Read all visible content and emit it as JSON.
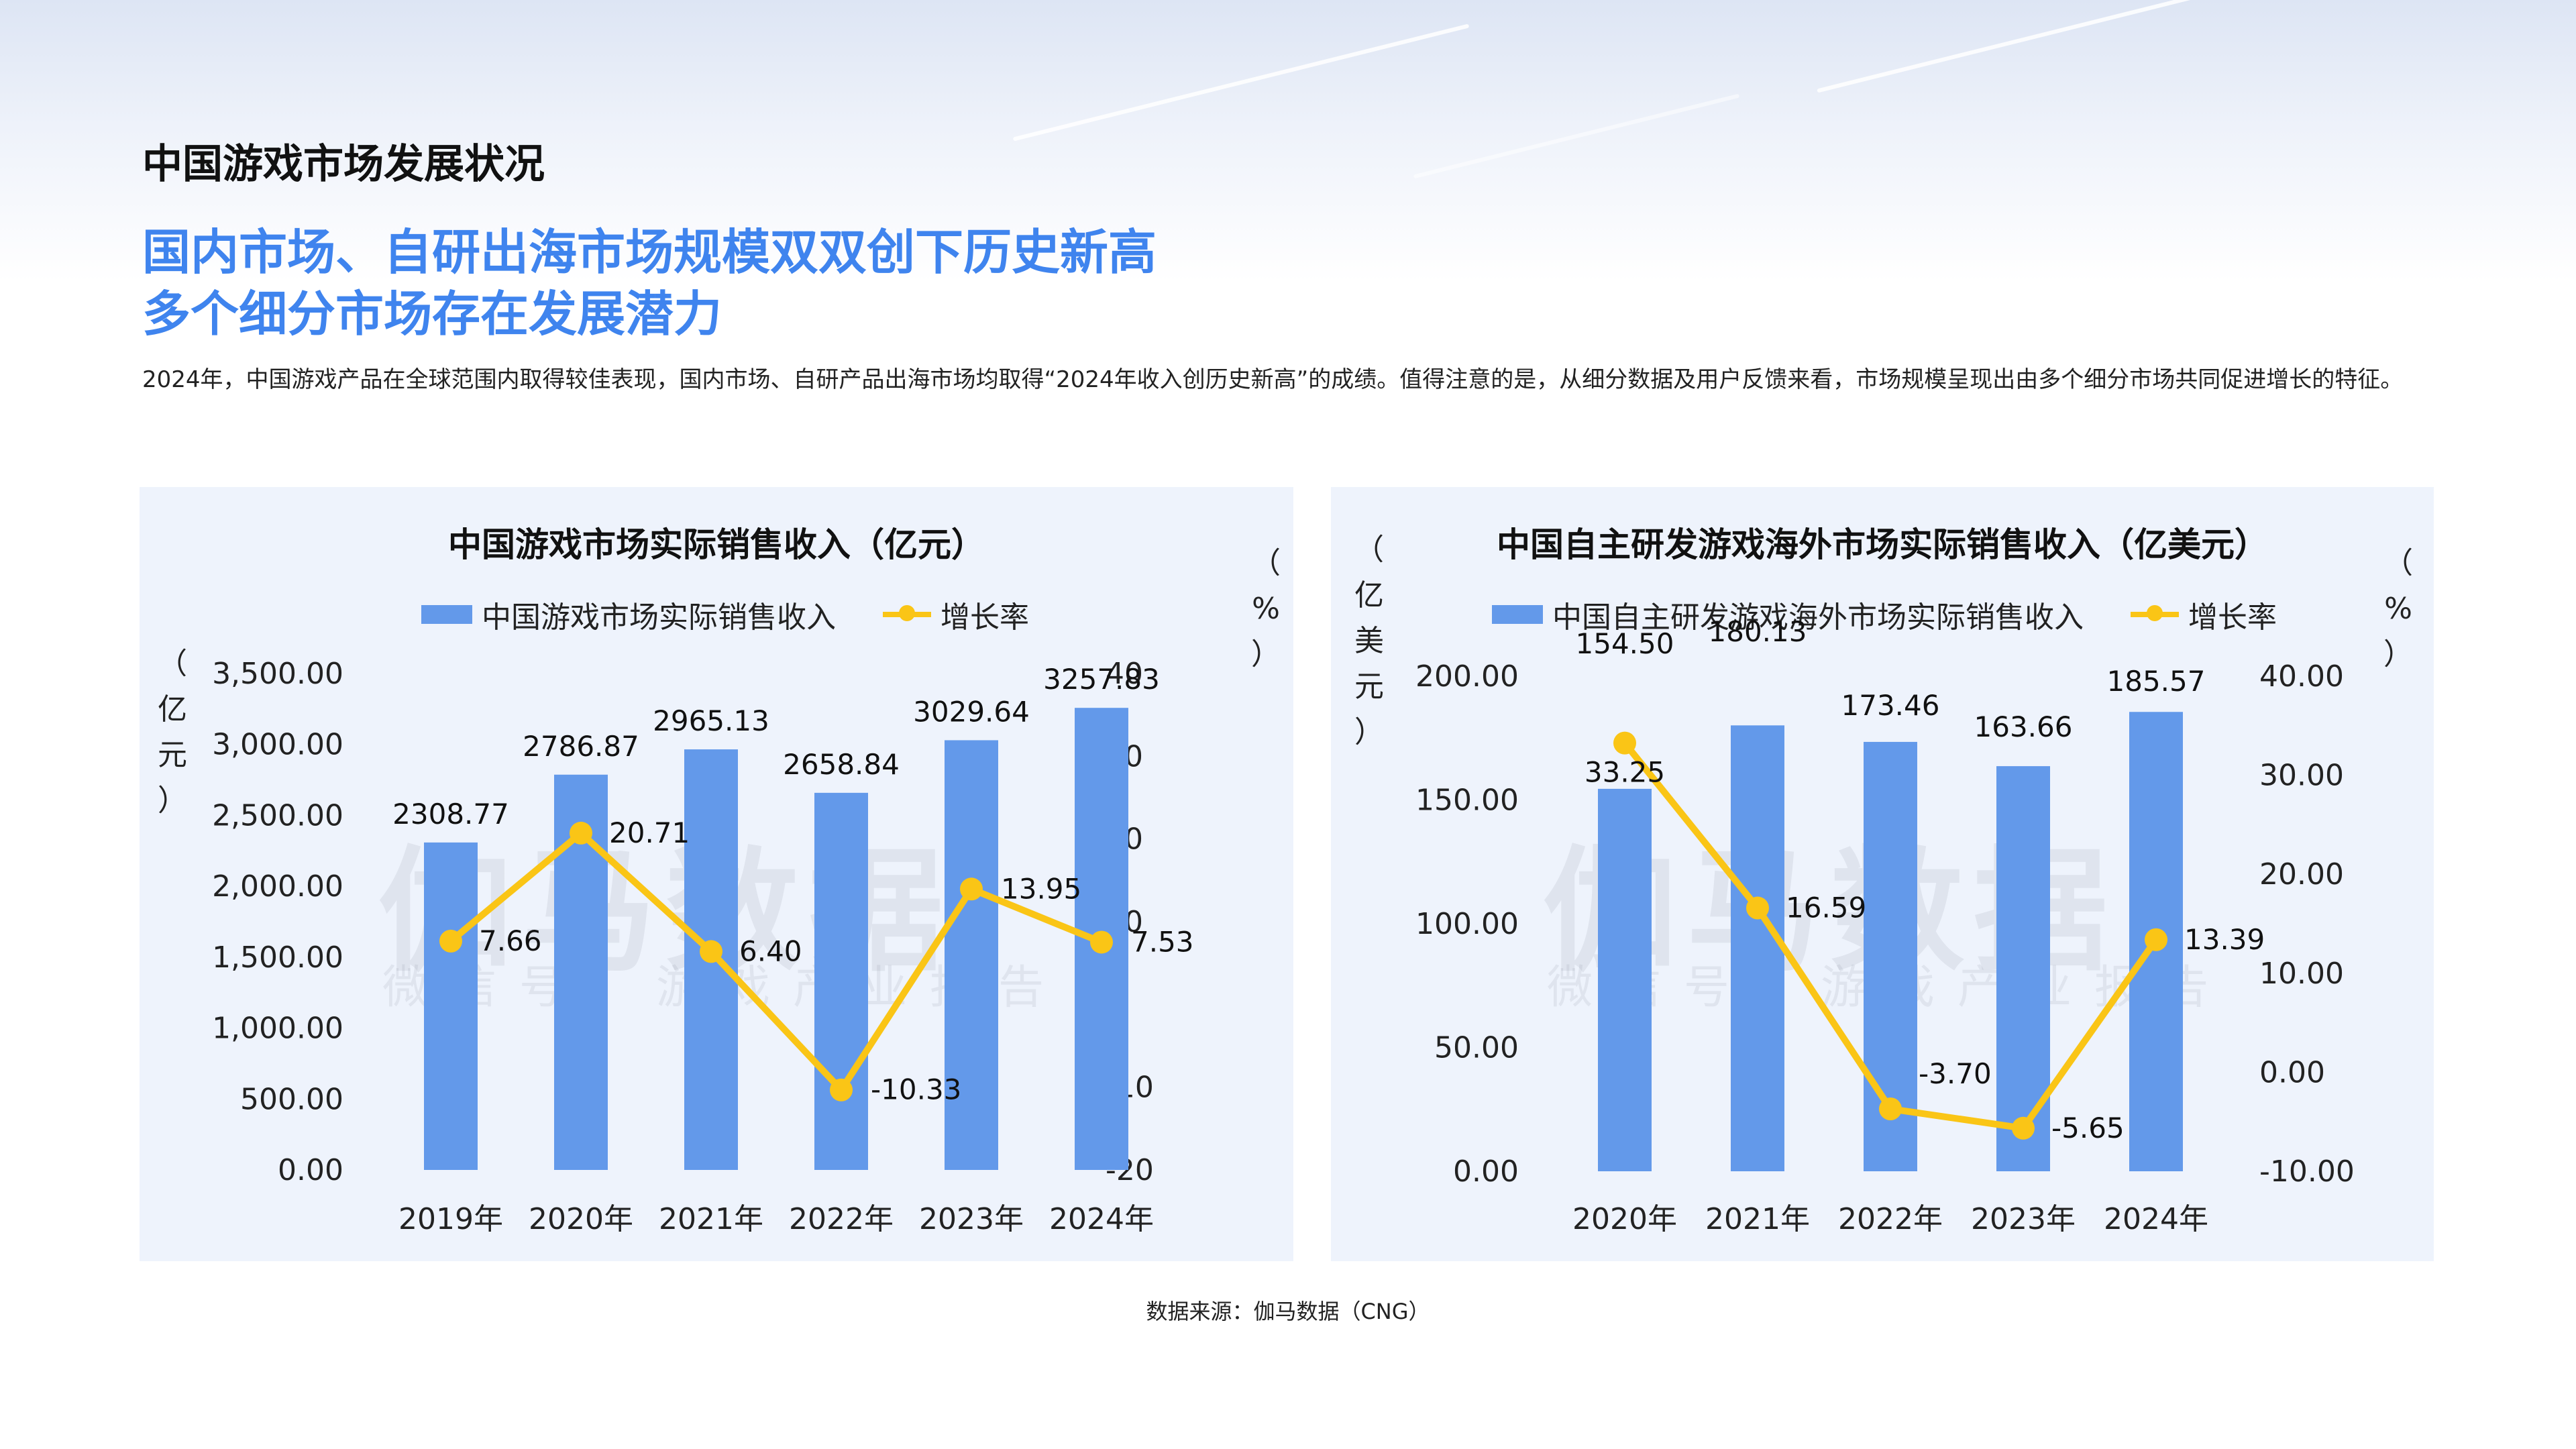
{
  "header": {
    "section_title": "中国游戏市场发展状况",
    "headline_line1": "国内市场、自研出海市场规模双双创下历史新高",
    "headline_line2": "多个细分市场存在发展潜力",
    "summary": "2024年，中国游戏产品在全球范围内取得较佳表现，国内市场、自研产品出海市场均取得“2024年收入创历史新高”的成绩。值得注意的是，从细分数据及用户反馈来看，市场规模呈现出由多个细分市场共同促进增长的特征。"
  },
  "watermark": {
    "main": "伽马数据",
    "sub": "微信号：游戏产业报告"
  },
  "source": "数据来源：伽马数据（CNG）",
  "colors": {
    "bar": "#6399ea",
    "line": "#fac516",
    "headline": "#3f84ee",
    "panel": "#eef3fc"
  },
  "chart_data": [
    {
      "type": "bar",
      "title": "中国游戏市场实际销售收入（亿元）",
      "categories": [
        "2019年",
        "2020年",
        "2021年",
        "2022年",
        "2023年",
        "2024年"
      ],
      "y_unit_label": "（亿元）",
      "y2_unit_label": "（%）",
      "ylim": [
        0,
        3500
      ],
      "yticks": [
        "0.00",
        "500.00",
        "1,000.00",
        "1,500.00",
        "2,000.00",
        "2,500.00",
        "3,000.00",
        "3,500.00"
      ],
      "y2lim": [
        -20,
        40
      ],
      "y2ticks": [
        "-20",
        "-10",
        "0",
        "10",
        "20",
        "30",
        "40"
      ],
      "grid": false,
      "legend_position": "top",
      "series": [
        {
          "name": "中国游戏市场实际销售收入",
          "type": "bar",
          "axis": "left",
          "values": [
            2308.77,
            2786.87,
            2965.13,
            2658.84,
            3029.64,
            3257.83
          ],
          "labels": [
            "2308.77",
            "2786.87",
            "2965.13",
            "2658.84",
            "3029.64",
            "3257.83"
          ]
        },
        {
          "name": "增长率",
          "type": "line",
          "axis": "right",
          "values": [
            7.66,
            20.71,
            6.4,
            -10.33,
            13.95,
            7.53
          ],
          "labels": [
            "7.66",
            "20.71",
            "6.40",
            "-10.33",
            "13.95",
            "7.53"
          ]
        }
      ]
    },
    {
      "type": "bar",
      "title": "中国自主研发游戏海外市场实际销售收入（亿美元）",
      "categories": [
        "2020年",
        "2021年",
        "2022年",
        "2023年",
        "2024年"
      ],
      "y_unit_label": "（亿美元）",
      "y2_unit_label": "（%）",
      "ylim": [
        0,
        200
      ],
      "yticks": [
        "0.00",
        "50.00",
        "100.00",
        "150.00",
        "200.00"
      ],
      "y2lim": [
        -10,
        40
      ],
      "y2ticks": [
        "-10.00",
        "0.00",
        "10.00",
        "20.00",
        "30.00",
        "40.00"
      ],
      "grid": false,
      "legend_position": "top",
      "series": [
        {
          "name": "中国自主研发游戏海外市场实际销售收入",
          "type": "bar",
          "axis": "left",
          "values": [
            154.5,
            180.13,
            173.46,
            163.66,
            185.57
          ],
          "labels": [
            "154.50",
            "180.13",
            "173.46",
            "163.66",
            "185.57"
          ]
        },
        {
          "name": "增长率",
          "type": "line",
          "axis": "right",
          "values": [
            33.25,
            16.59,
            -3.7,
            -5.65,
            13.39
          ],
          "labels": [
            "33.25",
            "16.59",
            "-3.70",
            "-5.65",
            "13.39"
          ]
        }
      ]
    }
  ]
}
